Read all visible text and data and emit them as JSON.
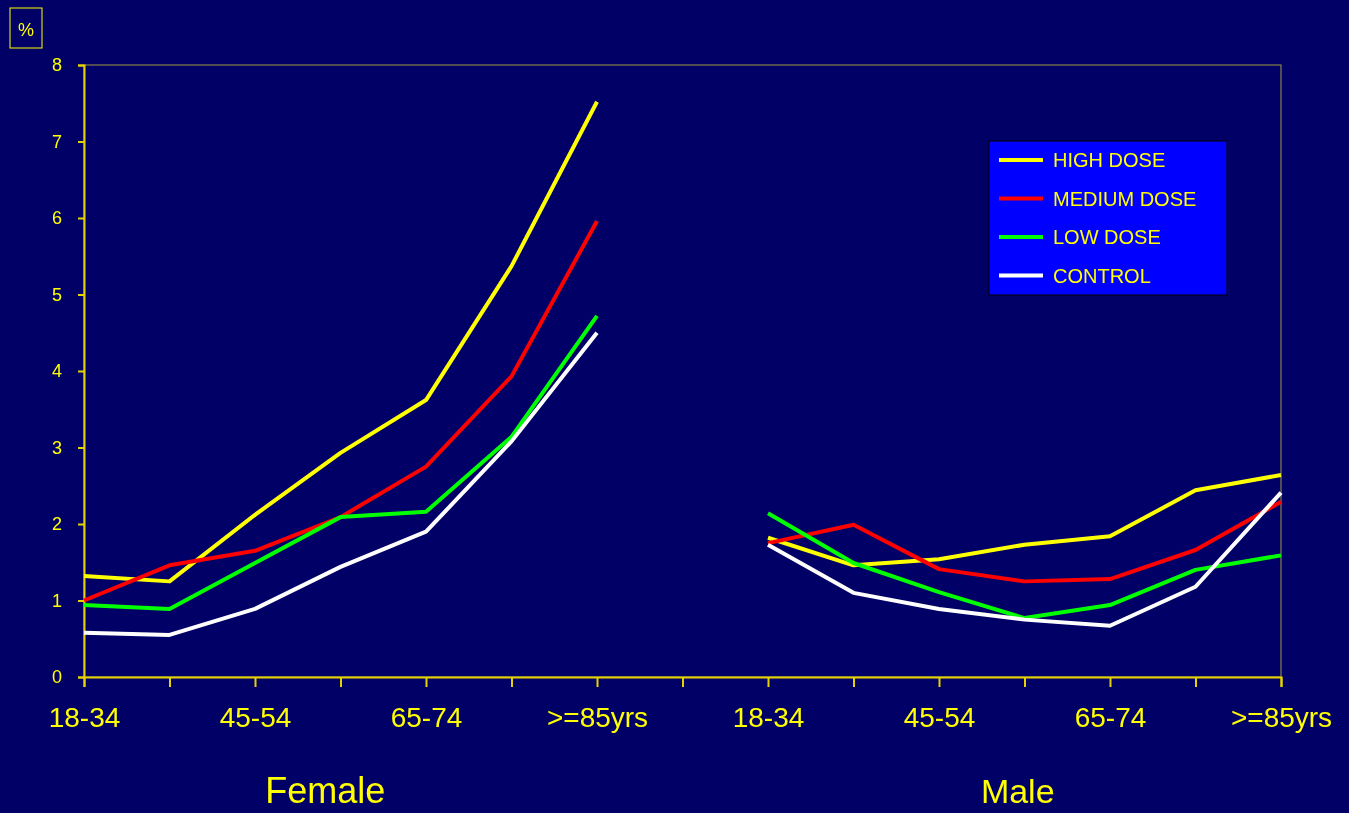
{
  "chart_data": {
    "type": "line",
    "ylabel": "%",
    "categories": [
      "18-34",
      null,
      "45-54",
      null,
      "65-74",
      null,
      ">=85yrs",
      null,
      "18-34",
      null,
      "45-54",
      null,
      "65-74",
      null,
      ">=85yrs"
    ],
    "series": [
      {
        "name": "HIGH DOSE",
        "color": "#ffff00",
        "values": [
          1.32,
          1.25,
          2.12,
          2.93,
          3.62,
          5.37,
          7.52,
          null,
          1.82,
          1.46,
          1.54,
          1.73,
          1.84,
          2.44,
          2.64
        ]
      },
      {
        "name": "MEDIUM DOSE",
        "color": "#ff0000",
        "values": [
          1.0,
          1.46,
          1.65,
          2.09,
          2.75,
          3.93,
          5.96,
          null,
          1.75,
          1.99,
          1.41,
          1.25,
          1.28,
          1.66,
          2.29
        ]
      },
      {
        "name": "LOW DOSE",
        "color": "#00ff00",
        "values": [
          0.94,
          0.89,
          1.49,
          2.09,
          2.16,
          3.14,
          4.72,
          null,
          2.14,
          1.49,
          1.11,
          0.77,
          0.94,
          1.4,
          1.59
        ]
      },
      {
        "name": "CONTROL",
        "color": "#ffffff",
        "values": [
          0.58,
          0.55,
          0.89,
          1.44,
          1.9,
          3.08,
          4.5,
          null,
          1.73,
          1.1,
          0.89,
          0.75,
          0.67,
          1.18,
          2.41
        ]
      }
    ],
    "ylim": [
      0,
      8
    ],
    "yticks": [
      0,
      1,
      2,
      3,
      4,
      5,
      6,
      7,
      8
    ],
    "annotations": [
      "Female",
      "Male"
    ],
    "legend": "top right",
    "marker": "none",
    "line_style": "solid",
    "grid": false
  }
}
